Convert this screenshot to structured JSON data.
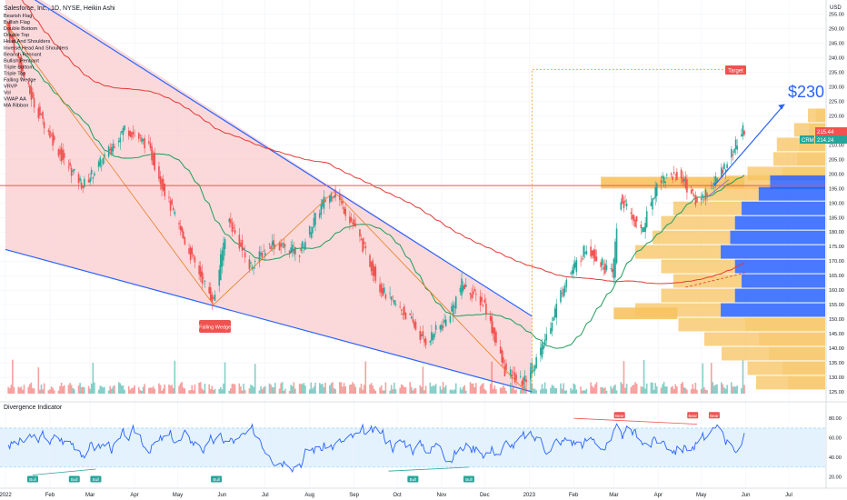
{
  "header": {
    "symbol_line": "Salesforce, Inc., 1D, NYSE, Heikin Ashi",
    "indicators": [
      "Bearish Flag",
      "Bullish Flag",
      "Double Bottom",
      "Double Top",
      "Head And Shoulders",
      "Inverse Head And Shoulders",
      "Bearish Pennant",
      "Bullish Pennant",
      "Triple Bottom",
      "Triple Top",
      "Falling Wedge",
      "VRVP",
      "Vol",
      "VWAP AA",
      "MA Ribbon"
    ]
  },
  "price_axis": {
    "currency": "USD",
    "ticks": [
      "255.00",
      "250.00",
      "245.00",
      "240.00",
      "235.00",
      "230.00",
      "225.00",
      "220.00",
      "215.00",
      "210.00",
      "205.00",
      "200.00",
      "195.00",
      "190.00",
      "185.00",
      "180.00",
      "175.00",
      "170.00",
      "165.00",
      "160.00",
      "155.00",
      "150.00",
      "145.00",
      "140.00",
      "135.00",
      "130.00",
      "125.00"
    ],
    "last_price_label": "215.44",
    "crm_label": "CRM",
    "crm_price_label": "214.24"
  },
  "time_axis": {
    "labels": [
      "2022",
      "Feb",
      "Mar",
      "Apr",
      "May",
      "Jun",
      "Jul",
      "Aug",
      "Sep",
      "Oct",
      "Nov",
      "Dec",
      "2023",
      "Feb",
      "Mar",
      "Apr",
      "May",
      "Jun",
      "Jul"
    ]
  },
  "annotations": {
    "target_label": "Target",
    "price_target_text": "$230",
    "falling_wedge_label": "Falling Wedge",
    "bear_labels": [
      "Bear",
      "Bear",
      "Bear"
    ],
    "bull_labels": [
      "Bull",
      "Bull",
      "Bull",
      "Bull",
      "Bull",
      "Bull"
    ]
  },
  "oscillator": {
    "title": "Divergence Indicator",
    "ticks": [
      "80.00",
      "60.00",
      "40.00",
      "20.00"
    ]
  },
  "colors": {
    "bull": "#26a69a",
    "bear": "#ef5350",
    "wedge_fill": "#f9c9cc",
    "wedge_line": "#2962ff",
    "ma_green": "#1e9c5a",
    "ma_red": "#e53935",
    "osc_line": "#2962ff",
    "vrvp_blue": "#2962ff",
    "vrvp_orange": "#f7c35f"
  },
  "chart_data": [
    {
      "type": "candlestick",
      "title": "Salesforce, Inc., 1D, NYSE, Heikin Ashi",
      "ylim": [
        125,
        258
      ],
      "x_range": [
        "2022-01-01",
        "2023-07-20"
      ],
      "approx_close_path": [
        {
          "date": "2022-01-01",
          "value": 252
        },
        {
          "date": "2022-01-20",
          "value": 225
        },
        {
          "date": "2022-02-10",
          "value": 205
        },
        {
          "date": "2022-02-24",
          "value": 196
        },
        {
          "date": "2022-03-10",
          "value": 205
        },
        {
          "date": "2022-03-25",
          "value": 216
        },
        {
          "date": "2022-04-10",
          "value": 210
        },
        {
          "date": "2022-04-25",
          "value": 190
        },
        {
          "date": "2022-05-10",
          "value": 172
        },
        {
          "date": "2022-05-26",
          "value": 156
        },
        {
          "date": "2022-06-05",
          "value": 185
        },
        {
          "date": "2022-06-20",
          "value": 168
        },
        {
          "date": "2022-07-05",
          "value": 176
        },
        {
          "date": "2022-07-25",
          "value": 173
        },
        {
          "date": "2022-08-10",
          "value": 190
        },
        {
          "date": "2022-08-18",
          "value": 194
        },
        {
          "date": "2022-09-01",
          "value": 182
        },
        {
          "date": "2022-09-20",
          "value": 160
        },
        {
          "date": "2022-10-10",
          "value": 150
        },
        {
          "date": "2022-10-20",
          "value": 142
        },
        {
          "date": "2022-11-05",
          "value": 150
        },
        {
          "date": "2022-11-15",
          "value": 162
        },
        {
          "date": "2022-12-01",
          "value": 155
        },
        {
          "date": "2022-12-15",
          "value": 132
        },
        {
          "date": "2022-12-28",
          "value": 128
        },
        {
          "date": "2023-01-10",
          "value": 140
        },
        {
          "date": "2023-01-25",
          "value": 162
        },
        {
          "date": "2023-02-10",
          "value": 175
        },
        {
          "date": "2023-02-28",
          "value": 165
        },
        {
          "date": "2023-03-05",
          "value": 192
        },
        {
          "date": "2023-03-20",
          "value": 180
        },
        {
          "date": "2023-04-01",
          "value": 198
        },
        {
          "date": "2023-04-15",
          "value": 200
        },
        {
          "date": "2023-04-28",
          "value": 190
        },
        {
          "date": "2023-05-10",
          "value": 197
        },
        {
          "date": "2023-05-20",
          "value": 205
        },
        {
          "date": "2023-05-30",
          "value": 215
        }
      ]
    },
    {
      "type": "line",
      "title": "Divergence Indicator",
      "ylim": [
        15,
        82
      ],
      "y_ticks": [
        80,
        60,
        40,
        20
      ]
    }
  ]
}
